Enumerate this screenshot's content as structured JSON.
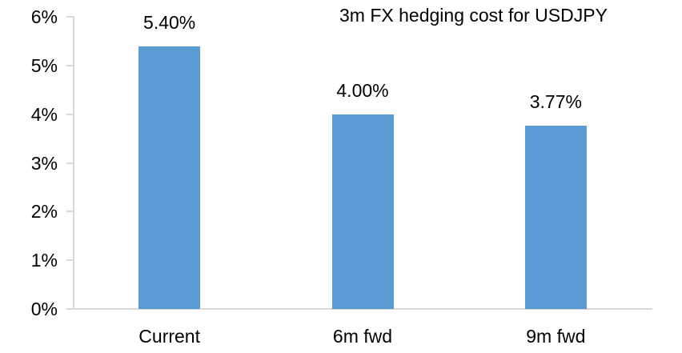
{
  "chart_data": {
    "type": "bar",
    "title": "3m FX hedging cost for USDJPY",
    "categories": [
      "Current",
      "6m fwd",
      "9m fwd"
    ],
    "values": [
      5.4,
      4.0,
      3.77
    ],
    "data_labels": [
      "5.40%",
      "4.00%",
      "3.77%"
    ],
    "y_tick_labels": [
      "0%",
      "1%",
      "2%",
      "3%",
      "4%",
      "5%",
      "6%"
    ],
    "y_tick_values": [
      0,
      1,
      2,
      3,
      4,
      5,
      6
    ],
    "ylim": [
      0,
      6
    ],
    "xlabel": "",
    "ylabel": "",
    "grid": false,
    "legend": false,
    "colors": {
      "bar": "#5b9bd5",
      "axis": "#d9d9d9",
      "text": "#000000",
      "background": "#ffffff"
    }
  }
}
